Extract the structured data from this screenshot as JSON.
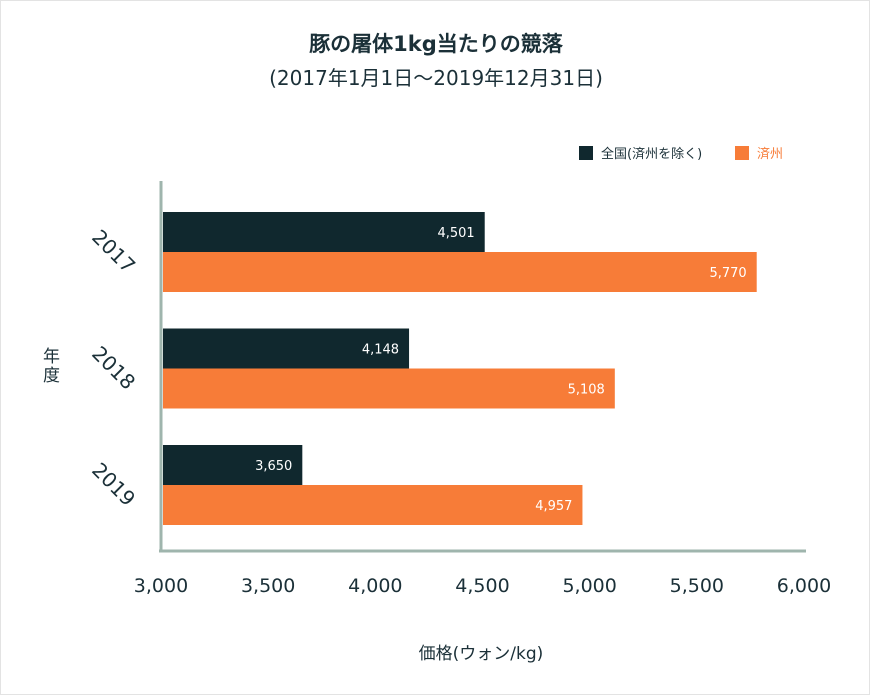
{
  "chart_data": {
    "type": "bar",
    "orientation": "horizontal",
    "title": "豚の屠体1kg当たりの競落",
    "subtitle": "(2017年1月1日〜2019年12月31日)",
    "xlabel": "価格(ウォン/kg)",
    "ylabel": "年度",
    "categories": [
      "2017",
      "2018",
      "2019"
    ],
    "xlim": [
      3000,
      6000
    ],
    "xticks": [
      "3,000",
      "3,500",
      "4,000",
      "4,500",
      "5,000",
      "5,500",
      "6,000"
    ],
    "xtick_values": [
      3000,
      3500,
      4000,
      4500,
      5000,
      5500,
      6000
    ],
    "legend_position": "top-right",
    "grid": false,
    "series": [
      {
        "name": "全国(済州を除く)",
        "color": "#10282e",
        "values": [
          4501,
          4148,
          3650
        ],
        "labels": [
          "4,501",
          "4,148",
          "3,650"
        ]
      },
      {
        "name": "済州",
        "color": "#f77c38",
        "values": [
          5770,
          5108,
          4957
        ],
        "labels": [
          "5,770",
          "5,108",
          "4,957"
        ]
      }
    ]
  },
  "colors": {
    "axis": "#9fb5ad",
    "text": "#1b3038",
    "label_on_bar": "#ffffff"
  }
}
